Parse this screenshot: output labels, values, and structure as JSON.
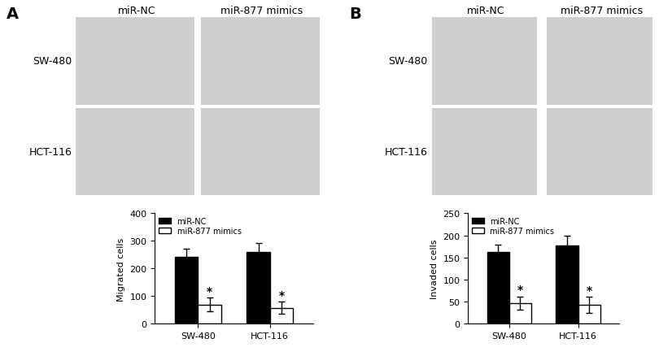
{
  "panels": [
    {
      "label": "A",
      "image_columns": [
        "miR-NC",
        "miR-877 mimics"
      ],
      "image_rows": [
        "SW-480",
        "HCT-116"
      ]
    },
    {
      "label": "B",
      "image_columns": [
        "miR-NC",
        "miR-877 mimics"
      ],
      "image_rows": [
        "SW-480",
        "HCT-116"
      ]
    }
  ],
  "chart_data": [
    {
      "type": "bar",
      "y_label": "Migrated cells",
      "categories": [
        "SW-480",
        "HCT-116"
      ],
      "series": [
        {
          "name": "miR-NC",
          "color": "#000000",
          "values": [
            243,
            260
          ],
          "errors": [
            30,
            32
          ]
        },
        {
          "name": "miR-877 mimics",
          "color": "#ffffff",
          "values": [
            70,
            58
          ],
          "errors": [
            25,
            22
          ],
          "significance": [
            "*",
            "*"
          ]
        }
      ],
      "ylim": [
        0,
        400
      ],
      "yticks": [
        0,
        100,
        200,
        300,
        400
      ],
      "legend": "upper left"
    },
    {
      "type": "bar",
      "y_label": "Invaded cells",
      "categories": [
        "SW-480",
        "HCT-116"
      ],
      "series": [
        {
          "name": "miR-NC",
          "color": "#000000",
          "values": [
            162,
            178
          ],
          "errors": [
            18,
            22
          ]
        },
        {
          "name": "miR-877 mimics",
          "color": "#ffffff",
          "values": [
            47,
            43
          ],
          "errors": [
            15,
            18
          ],
          "significance": [
            "*",
            "*"
          ]
        }
      ],
      "ylim": [
        0,
        250
      ],
      "yticks": [
        0,
        50,
        100,
        150,
        200,
        250
      ],
      "legend": "upper left"
    }
  ]
}
